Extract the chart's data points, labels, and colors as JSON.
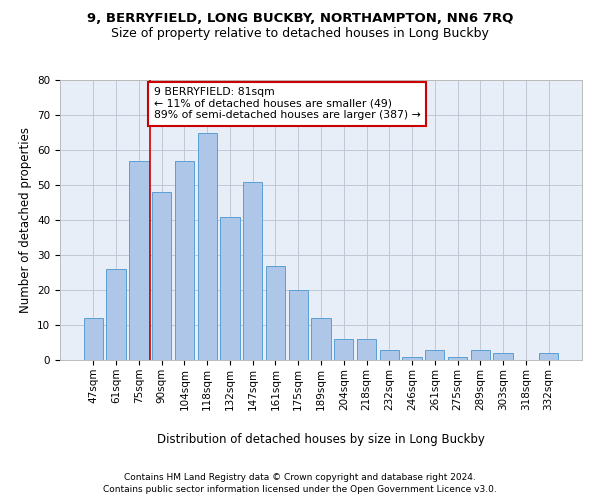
{
  "title": "9, BERRYFIELD, LONG BUCKBY, NORTHAMPTON, NN6 7RQ",
  "subtitle": "Size of property relative to detached houses in Long Buckby",
  "xlabel": "Distribution of detached houses by size in Long Buckby",
  "ylabel": "Number of detached properties",
  "categories": [
    "47sqm",
    "61sqm",
    "75sqm",
    "90sqm",
    "104sqm",
    "118sqm",
    "132sqm",
    "147sqm",
    "161sqm",
    "175sqm",
    "189sqm",
    "204sqm",
    "218sqm",
    "232sqm",
    "246sqm",
    "261sqm",
    "275sqm",
    "289sqm",
    "303sqm",
    "318sqm",
    "332sqm"
  ],
  "values": [
    12,
    26,
    57,
    48,
    57,
    65,
    41,
    51,
    27,
    20,
    12,
    6,
    6,
    3,
    1,
    3,
    1,
    3,
    2,
    0,
    2
  ],
  "bar_color": "#aec6e8",
  "bar_edge_color": "#5a9fd4",
  "annotation_line1": "9 BERRYFIELD: 81sqm",
  "annotation_line2": "← 11% of detached houses are smaller (49)",
  "annotation_line3": "89% of semi-detached houses are larger (387) →",
  "annotation_box_color": "#ffffff",
  "annotation_box_edge_color": "#cc0000",
  "red_line_x": 2.5,
  "ylim": [
    0,
    80
  ],
  "yticks": [
    0,
    10,
    20,
    30,
    40,
    50,
    60,
    70,
    80
  ],
  "grid_color": "#c0c8d8",
  "background_color": "#e8eef8",
  "footer_line1": "Contains HM Land Registry data © Crown copyright and database right 2024.",
  "footer_line2": "Contains public sector information licensed under the Open Government Licence v3.0.",
  "title_fontsize": 9.5,
  "subtitle_fontsize": 9,
  "axis_label_fontsize": 8.5,
  "tick_fontsize": 7.5,
  "annotation_fontsize": 7.8,
  "footer_fontsize": 6.5
}
